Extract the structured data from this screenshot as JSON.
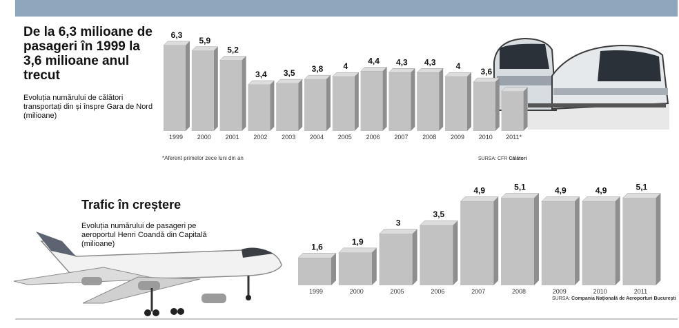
{
  "header": {
    "title1": "De la 6,3 milioane de pasageri în 1999 la 3,6 milioane anul trecut",
    "subtitle1": "Evoluția numărului de călători transportați din și înspre Gara de Nord (milioane)",
    "note1": "*Aferent primelor zece luni din an",
    "source1_prefix": "SURSA: CFR ",
    "source1_name": "Călători",
    "title2": "Trafic în creștere",
    "subtitle2": "Evoluția numărului de pasageri pe aeroportul Henri Coandă din Capitală (milioane)",
    "source2_prefix": "SURSA: ",
    "source2_name": "Compania Națională de Aeroporturi București"
  },
  "colors": {
    "band": "#8fa7bd",
    "bar_front": "#c2c2c2",
    "bar_side": "#8e8e8e",
    "bar_top": "#dcdcdc"
  },
  "chart_data": [
    {
      "type": "bar",
      "title": "De la 6,3 milioane de pasageri în 1999 la 3,6 milioane anul trecut",
      "categories": [
        "1999",
        "2000",
        "2001",
        "2002",
        "2003",
        "2004",
        "2005",
        "2006",
        "2007",
        "2008",
        "2009",
        "2010",
        "2011*"
      ],
      "values": [
        6.3,
        5.9,
        5.2,
        3.4,
        3.5,
        3.8,
        4,
        4.4,
        4.3,
        4.3,
        4,
        3.6,
        2.9
      ],
      "labels": [
        "6,3",
        "5,9",
        "5,2",
        "3,4",
        "3,5",
        "3,8",
        "4",
        "4,4",
        "4,3",
        "4,3",
        "4",
        "3,6",
        ""
      ]
    },
    {
      "type": "bar",
      "title": "Trafic în creștere",
      "categories": [
        "1999",
        "2000",
        "2005",
        "2006",
        "2007",
        "2008",
        "2009",
        "2010",
        "2011"
      ],
      "values": [
        1.6,
        1.9,
        3,
        3.5,
        4.9,
        5.1,
        4.9,
        4.9,
        5.1
      ],
      "labels": [
        "1,6",
        "1,9",
        "3",
        "3,5",
        "4,9",
        "5,1",
        "4,9",
        "4,9",
        "5,1"
      ]
    }
  ]
}
